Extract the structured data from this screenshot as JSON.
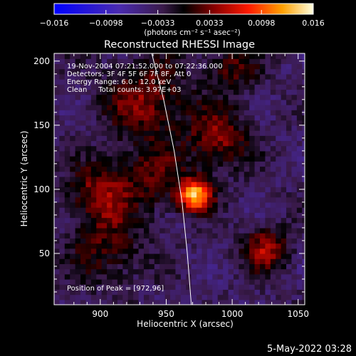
{
  "chart_data": {
    "type": "heatmap",
    "title": "Reconstructed RHESSI Image",
    "xlabel": "Heliocentric X (arcsec)",
    "ylabel": "Heliocentric Y (arcsec)",
    "xlim": [
      865,
      1055
    ],
    "ylim": [
      10,
      206
    ],
    "x_ticks": [
      900,
      950,
      1000,
      1050
    ],
    "y_ticks": [
      50,
      100,
      150,
      200
    ],
    "colorbar": {
      "range": [
        -0.016,
        0.016
      ],
      "tick_labels": [
        "−0.016",
        "−0.0098",
        "−0.0033",
        "0.0033",
        "0.0098",
        "0.016"
      ],
      "units": "(photons cm⁻² s⁻¹ asec⁻²)"
    },
    "annotations": [
      "19-Nov-2004 07:21:52.000 to 07:22:36.000",
      "Detectors: 3F 4F 5F 6F 7F 8F, Att 0",
      "Energy Range: 6.0 - 12.0 keV",
      "Clean     Total counts: 3.97E+03"
    ],
    "peak_label": "Position of Peak = [972,96]",
    "peak_position": [
      972,
      96
    ],
    "limb_points": [
      [
        939,
        206
      ],
      [
        948,
        170
      ],
      [
        956,
        130
      ],
      [
        962,
        90
      ],
      [
        966,
        50
      ],
      [
        969,
        10
      ]
    ],
    "sources": [
      {
        "x": 972,
        "y": 96,
        "amp": 0.016,
        "sigma": 9
      },
      {
        "x": 1025,
        "y": 54,
        "amp": 0.008,
        "sigma": 12
      },
      {
        "x": 990,
        "y": 140,
        "amp": 0.007,
        "sigma": 16
      },
      {
        "x": 935,
        "y": 170,
        "amp": 0.007,
        "sigma": 22
      },
      {
        "x": 900,
        "y": 98,
        "amp": 0.007,
        "sigma": 16
      },
      {
        "x": 940,
        "y": 110,
        "amp": 0.005,
        "sigma": 18
      },
      {
        "x": 905,
        "y": 55,
        "amp": 0.005,
        "sigma": 20
      },
      {
        "x": 1000,
        "y": 195,
        "amp": 0.005,
        "sigma": 14
      }
    ],
    "grid": false,
    "legend": "none"
  },
  "footer": {
    "timestamp": "5-May-2022 03:28"
  }
}
